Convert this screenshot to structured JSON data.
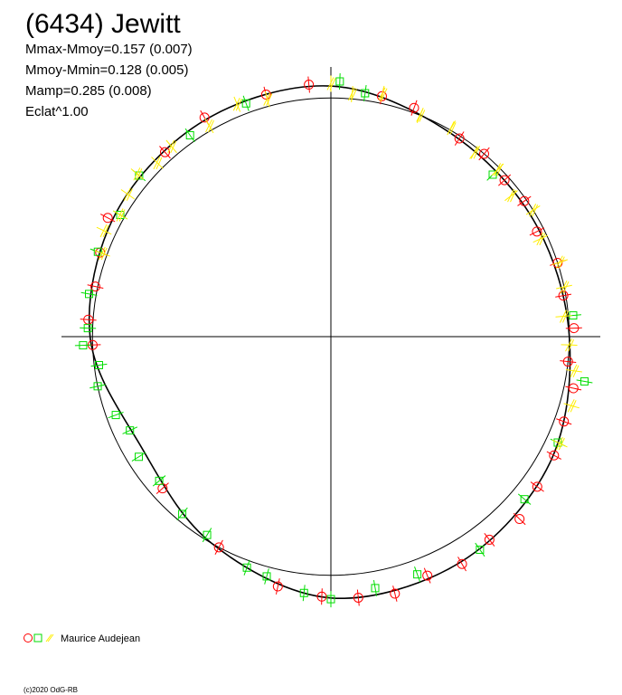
{
  "chart_data": {
    "type": "polar",
    "title": "(6434) Jewitt",
    "annotations": [
      "Mmax-Mmoy=0.157 (0.007)",
      "Mmoy-Mmin=0.128 (0.005)",
      "Mamp=0.285 (0.008)",
      "Eclat^1.00"
    ],
    "legend_label": "Maurice Audejean",
    "footer": "(c)2020 OdG-RB",
    "rlim": [
      0,
      1.13
    ],
    "reference_radius": 1,
    "curve": {
      "color": "#000000",
      "x": [
        0,
        30,
        60,
        90,
        120,
        150,
        180,
        210,
        240,
        270,
        300,
        330
      ],
      "values": [
        1.05,
        0.99,
        0.98,
        1.0,
        1.06,
        1.09,
        1.095,
        1.0,
        0.92,
        1.01,
        1.04,
        1.05
      ]
    },
    "series": [
      {
        "marker": "circle",
        "color": "#ff0000",
        "x": [
          12,
          20,
          33,
          40,
          48,
          55,
          63,
          72,
          80,
          88,
          96,
          102,
          110,
          118,
          126,
          134,
          142,
          150,
          158,
          166,
          174,
          182,
          192,
          208,
          228,
          268,
          274,
          282,
          290,
          298,
          318,
          330,
          345,
          355
        ],
        "values": [
          1.03,
          1.02,
          0.99,
          1.0,
          0.98,
          0.99,
          0.97,
          1.0,
          0.99,
          1.02,
          1.0,
          1.04,
          1.04,
          1.06,
          1.07,
          1.1,
          1.08,
          1.1,
          1.08,
          1.11,
          1.1,
          1.09,
          1.07,
          1.0,
          0.95,
          1.0,
          1.02,
          1.01,
          1.03,
          1.06,
          1.04,
          1.06,
          1.05,
          1.06
        ]
      },
      {
        "marker": "square",
        "color": "#00dd00",
        "x": [
          2,
          8,
          45,
          85,
          100,
          115,
          130,
          145,
          160,
          170,
          180,
          186,
          195,
          200,
          212,
          220,
          230,
          238,
          245,
          250,
          258,
          263,
          268,
          272,
          280,
          290,
          300,
          310,
          325,
          340
        ],
        "values": [
          1.07,
          1.03,
          0.96,
          1.02,
          1.08,
          1.05,
          1.06,
          1.09,
          1.06,
          1.07,
          1.1,
          1.08,
          1.04,
          1.03,
          0.98,
          0.97,
          0.94,
          0.95,
          0.93,
          0.96,
          1.0,
          0.98,
          1.04,
          1.02,
          1.03,
          1.04,
          1.02,
          1.05,
          1.03,
          1.04
        ]
      },
      {
        "marker": "cross",
        "color": "#ffee00",
        "x": [
          0,
          5,
          12,
          22,
          30,
          38,
          45,
          52,
          58,
          65,
          72,
          78,
          85,
          92,
          98,
          106,
          115,
          290,
          295,
          300,
          305,
          310,
          315,
          320,
          330,
          338,
          345
        ],
        "values": [
          1.06,
          1.02,
          1.04,
          1.0,
          1.01,
          0.98,
          0.99,
          0.96,
          1.0,
          0.97,
          1.01,
          1.0,
          0.98,
          1.0,
          1.03,
          1.05,
          1.06,
          1.02,
          1.05,
          1.02,
          1.04,
          1.06,
          1.03,
          1.04,
          1.02,
          1.05,
          1.03
        ]
      }
    ]
  }
}
